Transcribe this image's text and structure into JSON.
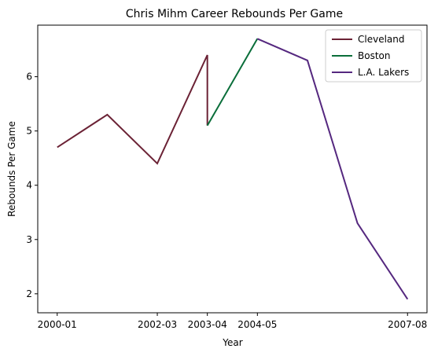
{
  "chart_data": {
    "type": "line",
    "title": "Chris Mihm Career Rebounds Per Game",
    "xlabel": "Year",
    "ylabel": "Rebounds Per Game",
    "x_ticks": [
      "2000-01",
      "2002-03",
      "2003-04",
      "2004-05",
      "2007-08"
    ],
    "y_ticks": [
      2,
      3,
      4,
      5,
      6
    ],
    "ylim": [
      1.65,
      6.95
    ],
    "grid": false,
    "legend_position": "top-right",
    "series": [
      {
        "name": "Cleveland",
        "color": "#6b2235",
        "points": [
          {
            "x": "2000-01",
            "y": 4.7
          },
          {
            "x": "2001-02",
            "y": 5.3
          },
          {
            "x": "2002-03",
            "y": 4.4
          },
          {
            "x": "2003-04",
            "y": 6.4
          },
          {
            "x": "2003-04",
            "y": 5.1
          }
        ]
      },
      {
        "name": "Boston",
        "color": "#0a6e3a",
        "points": [
          {
            "x": "2003-04",
            "y": 5.1
          },
          {
            "x": "2004-05",
            "y": 6.7
          }
        ]
      },
      {
        "name": "L.A. Lakers",
        "color": "#55287f",
        "points": [
          {
            "x": "2004-05",
            "y": 6.7
          },
          {
            "x": "2005-06",
            "y": 6.3
          },
          {
            "x": "2006-07",
            "y": 3.3
          },
          {
            "x": "2007-08",
            "y": 1.9
          }
        ]
      }
    ]
  }
}
